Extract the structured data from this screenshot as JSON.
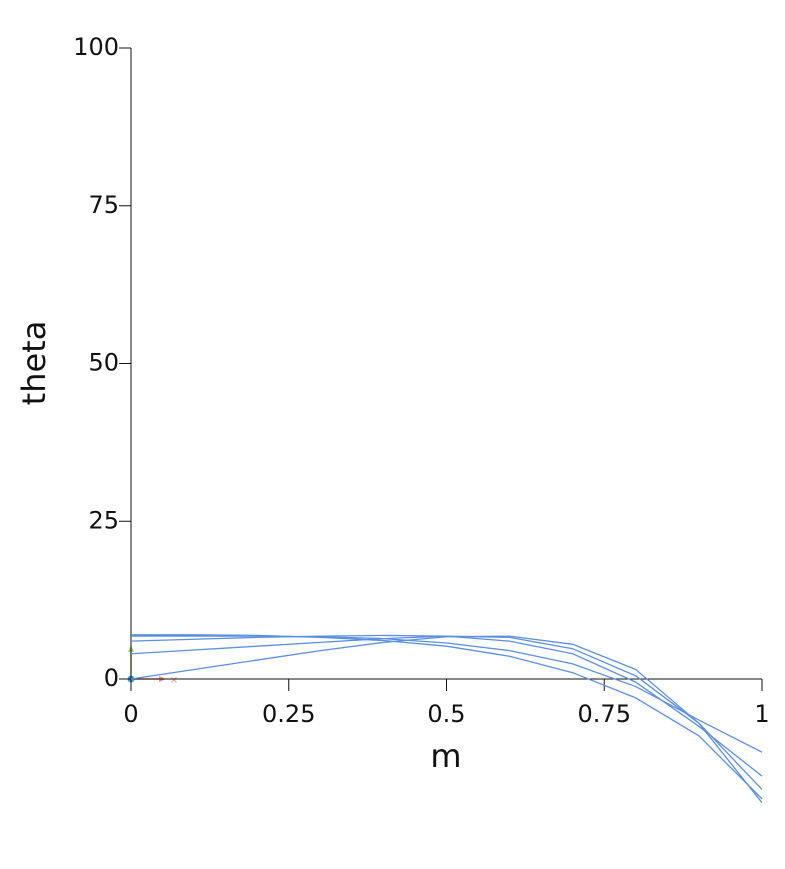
{
  "chart_data": {
    "type": "line",
    "x_label": "m",
    "y_label": "theta",
    "x": [
      0,
      0.1,
      0.2,
      0.3,
      0.4,
      0.5,
      0.6,
      0.7,
      0.8,
      0.9,
      1
    ],
    "series": [
      {
        "color": "#5b8fe0",
        "values": [
          0,
          1.5,
          3,
          4.5,
          5.8,
          6.7,
          6.8,
          5.5,
          1.5,
          -7,
          -19.6
        ]
      },
      {
        "color": "#5b8fe0",
        "values": [
          4,
          4.6,
          5.2,
          5.8,
          6.4,
          6.8,
          6.6,
          4.8,
          0.5,
          -7,
          -17.5
        ]
      },
      {
        "color": "#5b8fe0",
        "values": [
          6,
          6.3,
          6.6,
          6.8,
          6.9,
          6.8,
          6,
          4,
          -0.5,
          -7.5,
          -15.4
        ]
      },
      {
        "color": "#5b8fe0",
        "values": [
          6.8,
          6.8,
          6.8,
          6.7,
          6.4,
          5.7,
          4.5,
          2.4,
          -1.2,
          -6.5,
          -11.6
        ]
      },
      {
        "color": "#5b8fe0",
        "values": [
          7,
          7,
          6.9,
          6.6,
          6.1,
          5.2,
          3.6,
          1,
          -3,
          -9,
          -19
        ]
      }
    ],
    "xlim": [
      0,
      1
    ],
    "xticks": [
      0,
      0.25,
      0.5,
      0.75,
      1
    ],
    "ylim": [
      0,
      100
    ],
    "yticks": [
      0,
      25,
      50,
      75,
      100
    ]
  }
}
